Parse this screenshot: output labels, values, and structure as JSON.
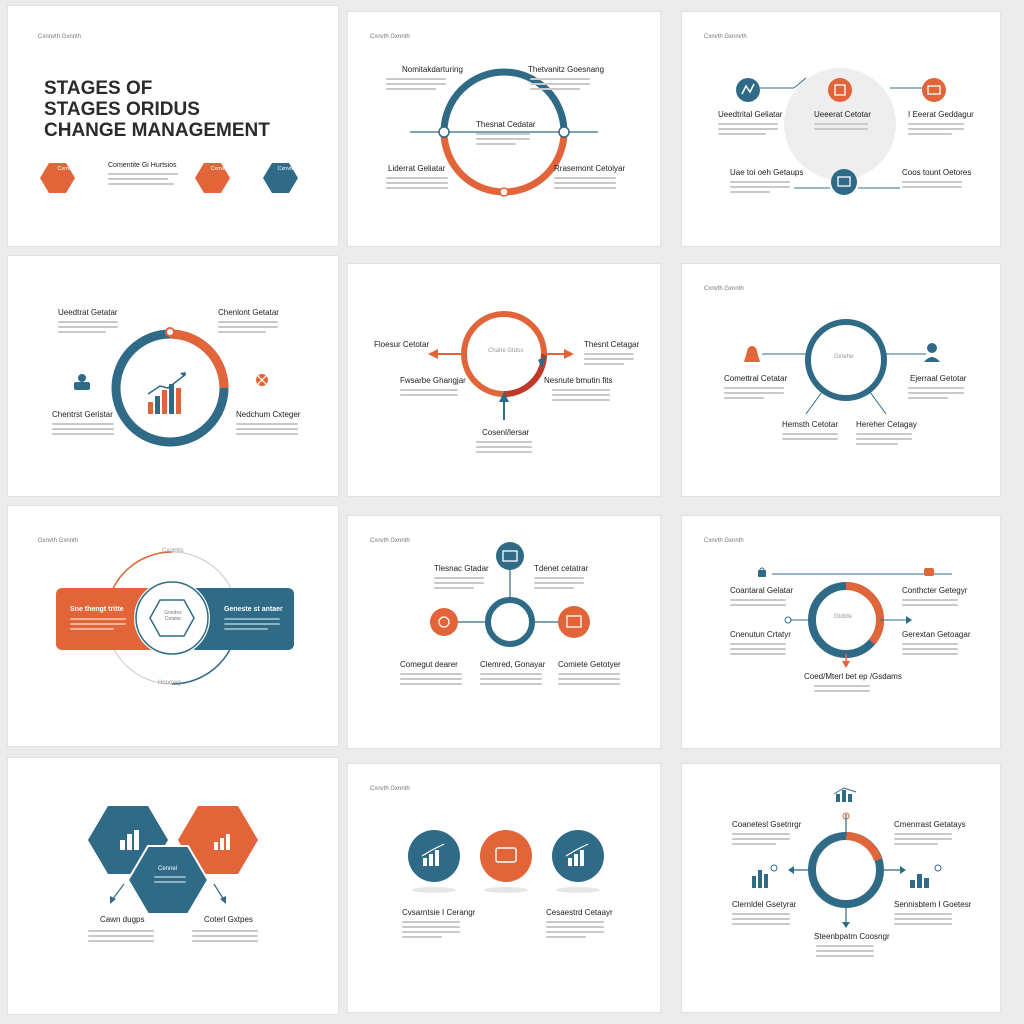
{
  "colors": {
    "orange": "#e2653a",
    "teal": "#2f6b87",
    "placeholder": "#c9c9c9",
    "ring_gray": "#eeeeee"
  },
  "slides": [
    {
      "tag": "Cxnnvth Gxnnth",
      "title_lines": [
        "STAGES OF",
        "STAGES ORIDUS",
        "CHANGE MANAGEMENT"
      ],
      "hex_labels": [
        "Cxnvthw",
        "Cxnvthw",
        "Cxnvthw"
      ],
      "item_label": "Comentite Gi Hurtsios"
    },
    {
      "tag": "Cxnvth Gxnnth",
      "labels": [
        "Nomitakdarturing",
        "Thetvanitz Goesnang",
        "Thesnat Cedatar",
        "Liderrat Geliatar",
        "Rrasemont Cetolyar"
      ]
    },
    {
      "tag": "Cxnvth Gxnnvth",
      "labels": [
        "Ueedtrital Geliatar",
        "Ueeerat Cetotar",
        "I Eeerat Geddagur",
        "Uae toi oeh Getaups",
        "Coos tount Oetores"
      ]
    },
    {
      "labels": [
        "Ueedtrat Getatar",
        "Chenlont Getatar",
        "Chentrst Geristar",
        "Nedchum Cxteger"
      ]
    },
    {
      "labels": [
        "Floesur Cetotar",
        "Thesnt Cetagar",
        "Fwsarbe Ghangjar",
        "Nesnute bmutin fits",
        "Cosenl/lersar"
      ],
      "center_label": "Chahe Gtdos"
    },
    {
      "tag": "Cxnvth Gxnnth",
      "labels": [
        "Comettral Cetatar",
        "Ejerraal Getotar",
        "Hemsth Cetotar",
        "Hereher Cetagay"
      ],
      "center_label": "Gxtehe"
    },
    {
      "tag": "Gxnvth Gxnnth",
      "labels": [
        "Sne thengt tritte",
        "Geneste st antaer"
      ],
      "top_label": "Cxotntis",
      "bottom_label": "Hnomeg",
      "center_label": "Gnedns Cetatar"
    },
    {
      "tag": "Cxnvth Gxnnth",
      "labels": [
        "Tlesnac Gtadar",
        "Tdenet cetatrar",
        "Comegut dearer",
        "Clemred, Gonayar",
        "Comiete Getotyer"
      ]
    },
    {
      "tag": "Cxnvth Gxnnth",
      "labels": [
        "Coantaral Gelatar",
        "Conthcter Getegyr",
        "Cnenutun Crtatyr",
        "Gerextan Getoagar",
        "Coed/Mterl bet ep /Gsdams"
      ],
      "center_label": "Gtdtde"
    },
    {
      "labels": [
        "Cawn dugps",
        "Coterl Gxtpes"
      ],
      "center_label": "Cennel"
    },
    {
      "tag": "Cxnvth Gxnnth",
      "labels": [
        "Cvsarntsie I Cerangr",
        "Cesaestrd Cetaayr"
      ]
    },
    {
      "labels": [
        "Coanetesl Gsetnrgr",
        "Cmenrrast Getatays",
        "Clernldel Gsetyrar",
        "Sennisbtem I Goetesr",
        "Steenbpatm Coosngr"
      ]
    }
  ]
}
